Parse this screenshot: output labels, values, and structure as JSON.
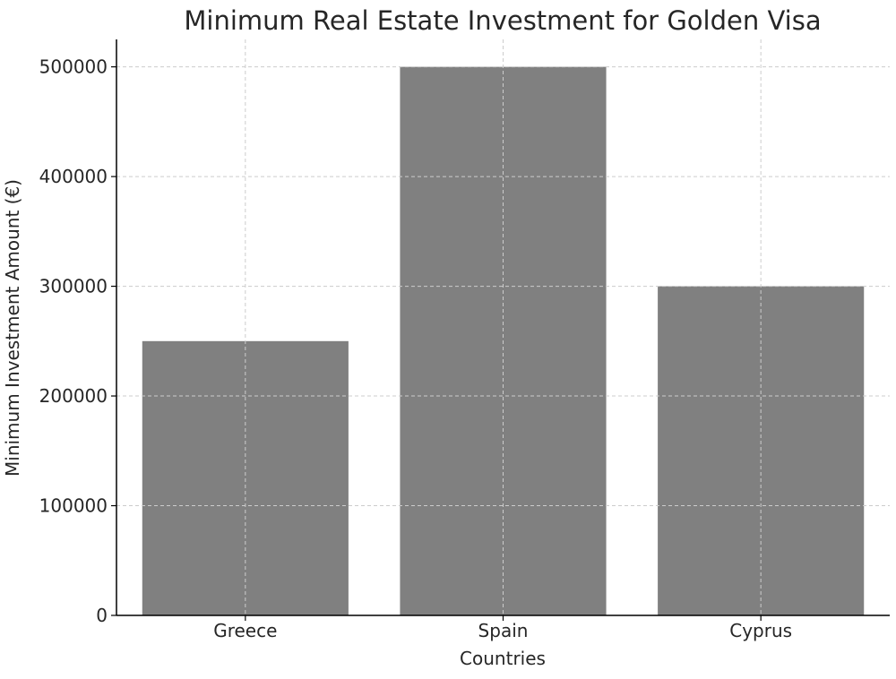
{
  "chart_data": {
    "type": "bar",
    "title": "Minimum Real Estate Investment for Golden Visa",
    "xlabel": "Countries",
    "ylabel": "Minimum Investment Amount (€)",
    "categories": [
      "Greece",
      "Spain",
      "Cyprus"
    ],
    "values": [
      250000,
      500000,
      300000
    ],
    "ylim": [
      0,
      525000
    ],
    "yticks": [
      0,
      100000,
      200000,
      300000,
      400000,
      500000
    ],
    "ytick_labels": [
      "0",
      "100000",
      "200000",
      "300000",
      "400000",
      "500000"
    ],
    "grid": true,
    "legend": "none",
    "colors": {
      "bar": "#808080",
      "grid": "#cccccc",
      "axis": "#000000",
      "text": "#262626"
    }
  }
}
